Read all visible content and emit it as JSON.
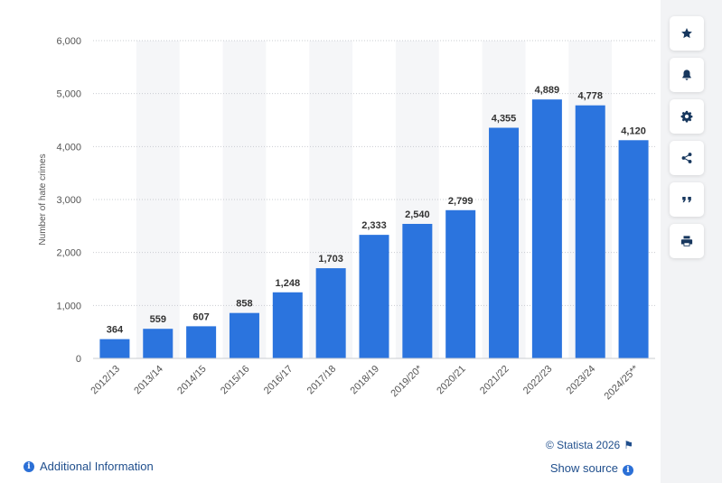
{
  "chart_data": {
    "type": "bar",
    "categories": [
      "2012/13",
      "2013/14",
      "2014/15",
      "2015/16",
      "2016/17",
      "2017/18",
      "2018/19",
      "2019/20*",
      "2020/21",
      "2021/22",
      "2022/23",
      "2023/24",
      "2024/25**"
    ],
    "values": [
      364,
      559,
      607,
      858,
      1248,
      1703,
      2333,
      2540,
      2799,
      4355,
      4889,
      4778,
      4120
    ],
    "value_labels": [
      "364",
      "559",
      "607",
      "858",
      "1,248",
      "1,703",
      "2,333",
      "2,540",
      "2,799",
      "4,355",
      "4,889",
      "4,778",
      "4,120"
    ],
    "ylabel": "Number of hate crimes",
    "ylim": [
      0,
      6000
    ],
    "yticks": [
      0,
      1000,
      2000,
      3000,
      4000,
      5000,
      6000
    ],
    "ytick_labels": [
      "0",
      "1,000",
      "2,000",
      "3,000",
      "4,000",
      "5,000",
      "6,000"
    ],
    "bar_color": "#2b74de",
    "grid": true
  },
  "footer": {
    "credit": "© Statista 2026",
    "additional_info": "Additional Information",
    "show_source": "Show source"
  },
  "sidebar": {
    "icons": [
      "star-icon",
      "bell-icon",
      "gear-icon",
      "share-icon",
      "quote-icon",
      "print-icon"
    ]
  }
}
